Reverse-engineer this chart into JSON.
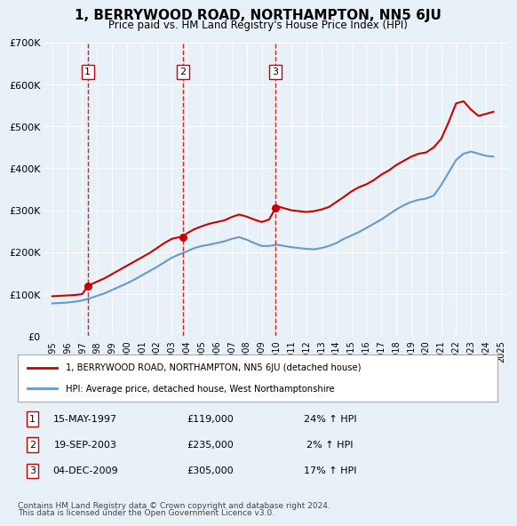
{
  "title": "1, BERRYWOOD ROAD, NORTHAMPTON, NN5 6JU",
  "subtitle": "Price paid vs. HM Land Registry's House Price Index (HPI)",
  "legend_line1": "1, BERRYWOOD ROAD, NORTHAMPTON, NN5 6JU (detached house)",
  "legend_line2": "HPI: Average price, detached house, West Northamptonshire",
  "footer1": "Contains HM Land Registry data © Crown copyright and database right 2024.",
  "footer2": "This data is licensed under the Open Government Licence v3.0.",
  "transactions": [
    {
      "num": 1,
      "date": "15-MAY-1997",
      "price": "£119,000",
      "hpi": "24% ↑ HPI",
      "year": 1997.37
    },
    {
      "num": 2,
      "date": "19-SEP-2003",
      "price": "£235,000",
      "hpi": "2% ↑ HPI",
      "year": 2003.72
    },
    {
      "num": 3,
      "date": "04-DEC-2009",
      "price": "£305,000",
      "hpi": "17% ↑ HPI",
      "year": 2009.92
    }
  ],
  "sale_prices": [
    119000,
    235000,
    305000
  ],
  "sale_years": [
    1997.37,
    2003.72,
    2009.92
  ],
  "red_line_x": [
    1995,
    1995.5,
    1996,
    1996.5,
    1997,
    1997.37,
    1997.5,
    1998,
    1998.5,
    1999,
    1999.5,
    2000,
    2000.5,
    2001,
    2001.5,
    2002,
    2002.5,
    2003,
    2003.5,
    2003.72,
    2004,
    2004.5,
    2005,
    2005.5,
    2006,
    2006.5,
    2007,
    2007.5,
    2008,
    2008.5,
    2009,
    2009.5,
    2009.92,
    2010,
    2010.5,
    2011,
    2011.5,
    2012,
    2012.5,
    2013,
    2013.5,
    2014,
    2014.5,
    2015,
    2015.5,
    2016,
    2016.5,
    2017,
    2017.5,
    2018,
    2018.5,
    2019,
    2019.5,
    2020,
    2020.5,
    2021,
    2021.5,
    2022,
    2022.5,
    2023,
    2023.5,
    2024,
    2024.5
  ],
  "red_line_y": [
    95000,
    96000,
    97000,
    98000,
    100000,
    119000,
    122000,
    130000,
    138000,
    148000,
    158000,
    168000,
    178000,
    188000,
    198000,
    210000,
    222000,
    232000,
    236000,
    235000,
    245000,
    255000,
    262000,
    268000,
    272000,
    276000,
    284000,
    290000,
    285000,
    278000,
    272000,
    278000,
    305000,
    310000,
    305000,
    300000,
    298000,
    296000,
    298000,
    302000,
    308000,
    320000,
    332000,
    345000,
    355000,
    362000,
    372000,
    385000,
    395000,
    408000,
    418000,
    428000,
    435000,
    438000,
    450000,
    470000,
    510000,
    555000,
    560000,
    540000,
    525000,
    530000,
    535000
  ],
  "blue_line_x": [
    1995,
    1995.5,
    1996,
    1996.5,
    1997,
    1997.5,
    1998,
    1998.5,
    1999,
    1999.5,
    2000,
    2000.5,
    2001,
    2001.5,
    2002,
    2002.5,
    2003,
    2003.5,
    2004,
    2004.5,
    2005,
    2005.5,
    2006,
    2006.5,
    2007,
    2007.5,
    2008,
    2008.5,
    2009,
    2009.5,
    2010,
    2010.5,
    2011,
    2011.5,
    2012,
    2012.5,
    2013,
    2013.5,
    2014,
    2014.5,
    2015,
    2015.5,
    2016,
    2016.5,
    2017,
    2017.5,
    2018,
    2018.5,
    2019,
    2019.5,
    2020,
    2020.5,
    2021,
    2021.5,
    2022,
    2022.5,
    2023,
    2023.5,
    2024,
    2024.5
  ],
  "blue_line_y": [
    78000,
    79000,
    80000,
    82000,
    85000,
    90000,
    96000,
    102000,
    110000,
    118000,
    126000,
    135000,
    145000,
    155000,
    165000,
    176000,
    187000,
    195000,
    202000,
    210000,
    215000,
    218000,
    222000,
    226000,
    232000,
    236000,
    230000,
    222000,
    215000,
    215000,
    218000,
    215000,
    212000,
    210000,
    208000,
    207000,
    210000,
    215000,
    222000,
    232000,
    240000,
    248000,
    258000,
    268000,
    278000,
    290000,
    302000,
    312000,
    320000,
    325000,
    328000,
    335000,
    360000,
    390000,
    420000,
    435000,
    440000,
    435000,
    430000,
    428000
  ],
  "ylim": [
    0,
    700000
  ],
  "xlim": [
    1994.5,
    2025.5
  ],
  "yticks": [
    0,
    100000,
    200000,
    300000,
    400000,
    500000,
    600000,
    700000
  ],
  "ytick_labels": [
    "£0",
    "£100K",
    "£200K",
    "£300K",
    "£400K",
    "£500K",
    "£600K",
    "£700K"
  ],
  "bg_color": "#e8f0f8",
  "plot_bg_color": "#e8f0f8",
  "red_color": "#cc0000",
  "blue_color": "#6699cc",
  "dashed_color": "#cc0000",
  "grid_color": "#ffffff"
}
